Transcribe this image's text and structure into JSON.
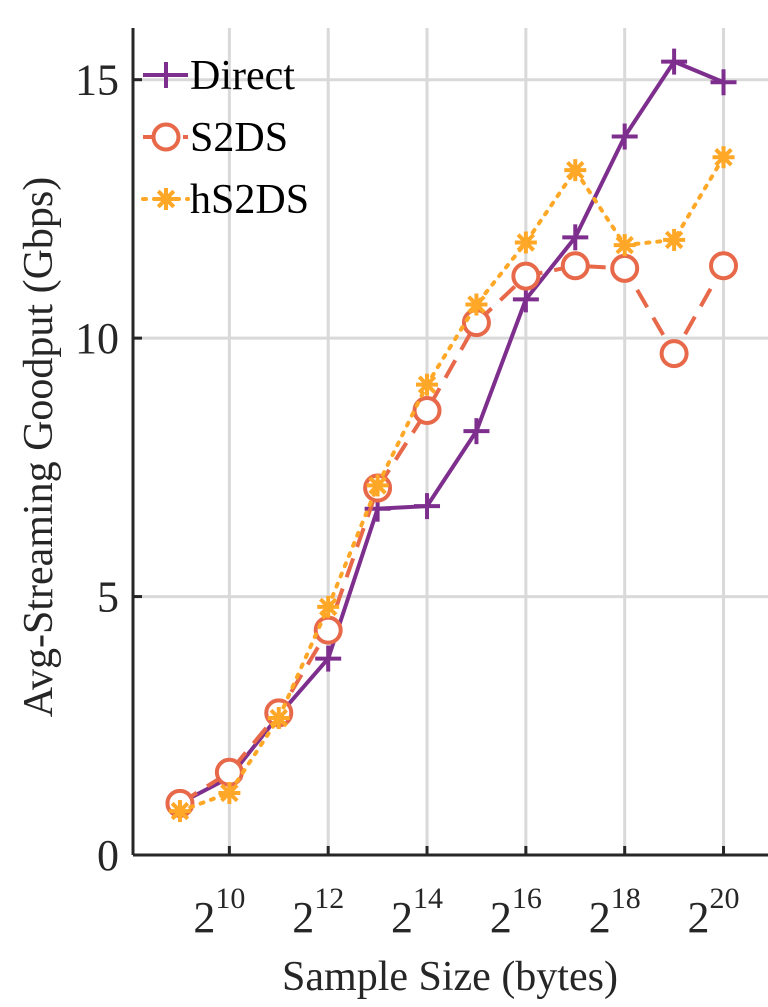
{
  "chart_data": {
    "type": "line",
    "xlabel": "Sample Size (bytes)",
    "ylabel": "Avg-Streaming Goodput (Gbps)",
    "x_scale": "log2",
    "x": [
      9,
      10,
      11,
      12,
      13,
      14,
      15,
      16,
      17,
      18,
      19,
      20
    ],
    "x_ticks": [
      {
        "base": "2",
        "exp": "10",
        "value": 10
      },
      {
        "base": "2",
        "exp": "12",
        "value": 12
      },
      {
        "base": "2",
        "exp": "14",
        "value": 14
      },
      {
        "base": "2",
        "exp": "16",
        "value": 16
      },
      {
        "base": "2",
        "exp": "18",
        "value": 18
      },
      {
        "base": "2",
        "exp": "20",
        "value": 20
      }
    ],
    "xlim": [
      8.05,
      20.9
    ],
    "y_ticks": [
      {
        "label": "0",
        "value": 0
      },
      {
        "label": "5",
        "value": 5
      },
      {
        "label": "10",
        "value": 10
      },
      {
        "label": "15",
        "value": 15
      }
    ],
    "ylim": [
      0,
      16
    ],
    "grid": true,
    "legend_position": "top-left",
    "series": [
      {
        "name": "Direct",
        "color": "#7E2F8E",
        "marker": "plus",
        "line": "solid",
        "values": [
          1.0,
          1.5,
          2.7,
          3.8,
          6.7,
          6.75,
          8.2,
          10.75,
          11.95,
          13.9,
          15.35,
          14.95
        ]
      },
      {
        "name": "S2DS",
        "color": "#E8694A",
        "marker": "circle",
        "line": "dashed",
        "values": [
          1.0,
          1.6,
          2.75,
          4.35,
          7.1,
          8.6,
          10.3,
          11.2,
          11.4,
          11.35,
          9.7,
          11.4
        ]
      },
      {
        "name": "hS2DS",
        "color": "#FFA726",
        "marker": "asterisk",
        "line": "dotted",
        "values": [
          0.85,
          1.2,
          2.65,
          4.8,
          7.15,
          9.1,
          10.65,
          11.85,
          13.25,
          11.8,
          11.9,
          13.5
        ]
      }
    ]
  }
}
